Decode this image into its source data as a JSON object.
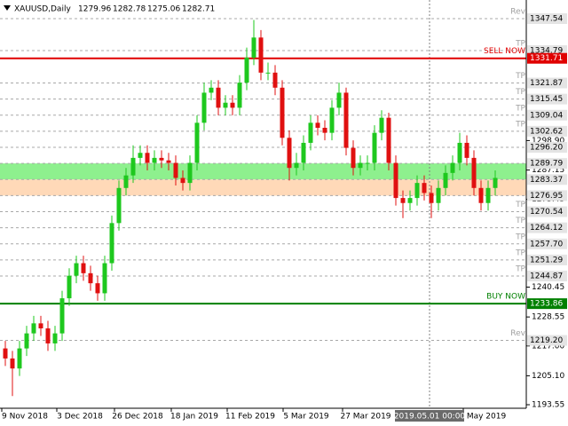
{
  "header": {
    "symbol": "XAUUSD,Daily",
    "ohlc": [
      1279.96,
      1282.78,
      1275.06,
      1282.71
    ]
  },
  "chart_data": {
    "type": "candlestick",
    "bull_color": "#1ec81e",
    "bear_color": "#e01010",
    "ylim": [
      1192.14,
      1354.97
    ],
    "open": [
      1216,
      1212,
      1208,
      1216,
      1222,
      1226,
      1224,
      1218,
      1222,
      1236,
      1245,
      1250,
      1246,
      1242,
      1238,
      1250,
      1266,
      1280,
      1285,
      1292,
      1294,
      1290,
      1292,
      1291,
      1290,
      1284,
      1282,
      1290,
      1306,
      1318,
      1320,
      1312,
      1314,
      1312,
      1322,
      1332,
      1340,
      1326,
      1326,
      1320,
      1300,
      1288,
      1290,
      1298,
      1306,
      1304,
      1302,
      1312,
      1318,
      1296,
      1288,
      1290,
      1290,
      1302,
      1308,
      1290,
      1276,
      1274,
      1276,
      1282,
      1278,
      1274,
      1280,
      1286,
      1290,
      1298,
      1292,
      1280,
      1274,
      1280
    ],
    "high": [
      1219,
      1215,
      1219,
      1225,
      1229,
      1229,
      1227,
      1225,
      1239,
      1248,
      1253,
      1253,
      1249,
      1245,
      1253,
      1269,
      1283,
      1288,
      1297,
      1297,
      1297,
      1295,
      1295,
      1294,
      1293,
      1287,
      1293,
      1309,
      1322,
      1323,
      1323,
      1317,
      1317,
      1325,
      1336,
      1347,
      1343,
      1330,
      1329,
      1323,
      1303,
      1294,
      1301,
      1309,
      1309,
      1307,
      1315,
      1322,
      1320,
      1299,
      1293,
      1293,
      1305,
      1311,
      1310,
      1293,
      1279,
      1279,
      1285,
      1285,
      1281,
      1283,
      1289,
      1293,
      1302,
      1301,
      1295,
      1283,
      1283,
      1287
    ],
    "low": [
      1209,
      1197,
      1205,
      1213,
      1219,
      1221,
      1215,
      1215,
      1219,
      1233,
      1242,
      1243,
      1239,
      1235,
      1235,
      1247,
      1263,
      1277,
      1282,
      1289,
      1287,
      1287,
      1288,
      1287,
      1281,
      1279,
      1279,
      1287,
      1303,
      1315,
      1309,
      1309,
      1309,
      1309,
      1319,
      1329,
      1323,
      1323,
      1317,
      1297,
      1283,
      1285,
      1287,
      1295,
      1301,
      1299,
      1299,
      1309,
      1293,
      1285,
      1285,
      1287,
      1287,
      1299,
      1287,
      1273,
      1268,
      1271,
      1273,
      1275,
      1268,
      1271,
      1277,
      1283,
      1287,
      1289,
      1277,
      1271,
      1271,
      1277
    ],
    "close": [
      1212,
      1208,
      1216,
      1222,
      1226,
      1224,
      1218,
      1222,
      1236,
      1245,
      1250,
      1246,
      1242,
      1238,
      1250,
      1266,
      1280,
      1285,
      1292,
      1294,
      1290,
      1292,
      1291,
      1290,
      1284,
      1282,
      1290,
      1306,
      1318,
      1320,
      1312,
      1314,
      1312,
      1322,
      1332,
      1340,
      1326,
      1326,
      1320,
      1300,
      1288,
      1290,
      1298,
      1306,
      1304,
      1302,
      1312,
      1318,
      1296,
      1288,
      1290,
      1290,
      1302,
      1308,
      1290,
      1276,
      1274,
      1276,
      1282,
      1278,
      1274,
      1280,
      1286,
      1290,
      1298,
      1292,
      1280,
      1274,
      1280,
      1284
    ],
    "zones": [
      {
        "from": 1289.79,
        "to": 1283.37,
        "color": "#8ef08e"
      },
      {
        "from": 1283.37,
        "to": 1276.95,
        "color": "#ffd9b8"
      }
    ],
    "levels": [
      {
        "text": "Rev",
        "price": 1347.54,
        "style": "dashed",
        "color": "#a0a0a0"
      },
      {
        "text": "TP",
        "price": 1334.79,
        "style": "dashed",
        "color": "#a0a0a0"
      },
      {
        "text": "SELL NOW",
        "price": 1331.71,
        "style": "solid",
        "color": "#e00000"
      },
      {
        "text": "TP",
        "price": 1321.87,
        "style": "dashed",
        "color": "#a0a0a0"
      },
      {
        "text": "TP",
        "price": 1315.45,
        "style": "dashed",
        "color": "#a0a0a0"
      },
      {
        "text": "TP",
        "price": 1309.04,
        "style": "dashed",
        "color": "#a0a0a0"
      },
      {
        "text": "TP",
        "price": 1302.62,
        "style": "dashed",
        "color": "#a0a0a0"
      },
      {
        "price": {
          "value": 1296.2,
          "label": "1296.20"
        },
        "style": "dashed",
        "color": "#a0a0a0"
      },
      {
        "price": 1289.79,
        "style": "dashed",
        "color": "#a0a0a0"
      },
      {
        "price": 1283.37,
        "style": "dashed",
        "color": "#a0a0a0"
      },
      {
        "price": 1276.95,
        "style": "dashed",
        "color": "#a0a0a0"
      },
      {
        "text": "TP",
        "price": 1270.54,
        "style": "dashed",
        "color": "#a0a0a0"
      },
      {
        "text": "TP",
        "price": 1264.12,
        "style": "dashed",
        "color": "#a0a0a0"
      },
      {
        "text": "TP",
        "price": {
          "value": 1257.7,
          "label": "1257.70"
        },
        "style": "dashed",
        "color": "#a0a0a0"
      },
      {
        "text": "TP",
        "price": 1251.29,
        "style": "dashed",
        "color": "#a0a0a0"
      },
      {
        "text": "TP",
        "price": 1244.87,
        "style": "dashed",
        "color": "#a0a0a0"
      },
      {
        "text": "BUY NOW",
        "price": 1233.86,
        "style": "solid",
        "color": "#008000"
      },
      {
        "text": "Rev",
        "price": {
          "value": 1219.2,
          "label": "1219.20"
        },
        "style": "dashed",
        "color": "#a0a0a0"
      }
    ],
    "yticks": [
      {
        "value": 1298.9,
        "label": "1298.90"
      },
      1287.15,
      1275.45,
      1240.45,
      1228.55,
      {
        "value": 1217,
        "label": "1217.00"
      },
      {
        "value": 1205.1,
        "label": "1205.10"
      },
      1193.55
    ],
    "x_labels": [
      "9 Nov 2018",
      "3 Dec 2018",
      "26 Dec 2018",
      "18 Jan 2019",
      "11 Feb 2019",
      "5 Mar 2019",
      "27 Mar 2019",
      "May 2019"
    ],
    "cursor_label": "2019.05.01 00:00"
  }
}
